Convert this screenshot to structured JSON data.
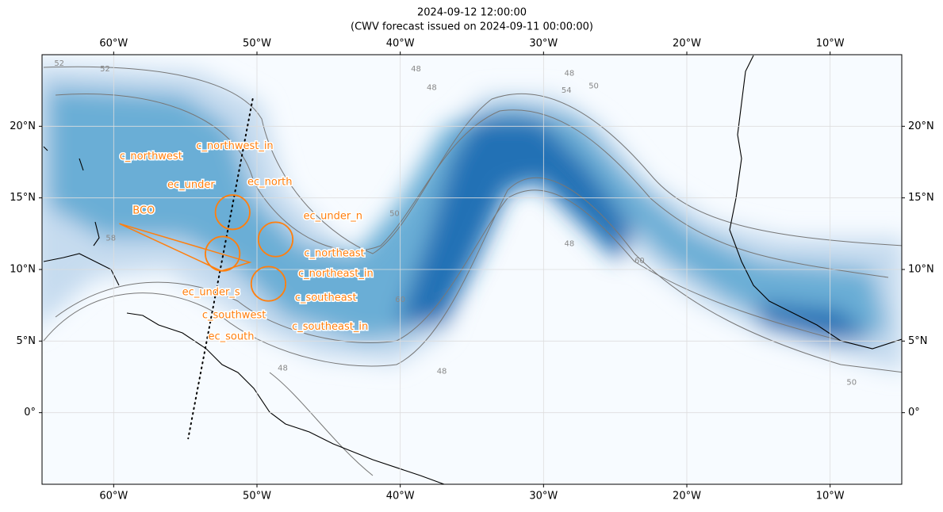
{
  "map": {
    "title": [
      "2024-09-12 12:00:00",
      "(CWV forecast issued on 2024-09-11 00:00:00)"
    ],
    "lonlim": [
      -65,
      -5
    ],
    "latlim": [
      -5,
      25
    ],
    "lonticks": [
      {
        "value": -60,
        "label": "60°W"
      },
      {
        "value": -50,
        "label": "50°W"
      },
      {
        "value": -40,
        "label": "40°W"
      },
      {
        "value": -30,
        "label": "30°W"
      },
      {
        "value": -20,
        "label": "20°W"
      },
      {
        "value": -10,
        "label": "10°W"
      }
    ],
    "latticks": [
      {
        "value": 0,
        "label": "0°"
      },
      {
        "value": 5,
        "label": "5°N"
      },
      {
        "value": 10,
        "label": "10°N"
      },
      {
        "value": 15,
        "label": "15°N"
      },
      {
        "value": 20,
        "label": "20°N"
      }
    ],
    "annotation_color": "#ff7f0e",
    "circles": [
      {
        "lon": -51.7,
        "lat": 14.0,
        "r": 1.2
      },
      {
        "lon": -48.7,
        "lat": 12.1,
        "r": 1.2
      },
      {
        "lon": -52.4,
        "lat": 11.1,
        "r": 1.2
      },
      {
        "lon": -49.2,
        "lat": 9.0,
        "r": 1.2
      }
    ],
    "track": [
      [
        -59.6,
        13.2
      ],
      [
        -50.5,
        10.5
      ],
      [
        -52.5,
        9.9
      ],
      [
        -59.6,
        13.2
      ]
    ],
    "dotted_track": [
      [
        -50.3,
        21.9
      ],
      [
        -54.8,
        -1.8
      ]
    ],
    "labels": [
      {
        "text": "c_northwest_in",
        "lon": -51.55,
        "lat": 18.6
      },
      {
        "text": "c_northwest",
        "lon": -57.4,
        "lat": 17.9
      },
      {
        "text": "ec_under",
        "lon": -54.6,
        "lat": 15.9
      },
      {
        "text": "ec_north",
        "lon": -49.1,
        "lat": 16.1
      },
      {
        "text": "BCO",
        "lon": -57.9,
        "lat": 14.1
      },
      {
        "text": "ec_under_n",
        "lon": -44.7,
        "lat": 13.7
      },
      {
        "text": "c_northeast",
        "lon": -44.6,
        "lat": 11.1
      },
      {
        "text": "c_northeast_in",
        "lon": -44.5,
        "lat": 9.7
      },
      {
        "text": "c_southeast",
        "lon": -45.2,
        "lat": 8.0
      },
      {
        "text": "ec_under_s",
        "lon": -53.2,
        "lat": 8.4
      },
      {
        "text": "c_southwest",
        "lon": -51.6,
        "lat": 6.8
      },
      {
        "text": "ec_south",
        "lon": -51.8,
        "lat": 5.3
      },
      {
        "text": "c_southeast_in",
        "lon": -44.9,
        "lat": 6.0
      }
    ],
    "contour_labels": [
      {
        "text": "52",
        "lon": -63.8,
        "lat": 24.4
      },
      {
        "text": "52",
        "lon": -60.6,
        "lat": 24.0
      },
      {
        "text": "48",
        "lon": -38.9,
        "lat": 24.0
      },
      {
        "text": "48",
        "lon": -37.8,
        "lat": 22.7
      },
      {
        "text": "48",
        "lon": -28.2,
        "lat": 23.7
      },
      {
        "text": "50",
        "lon": -26.5,
        "lat": 22.8
      },
      {
        "text": "54",
        "lon": -28.4,
        "lat": 22.5
      },
      {
        "text": "50",
        "lon": -40.4,
        "lat": 13.9
      },
      {
        "text": "48",
        "lon": -28.2,
        "lat": 11.8
      },
      {
        "text": "60",
        "lon": -23.3,
        "lat": 10.6
      },
      {
        "text": "50",
        "lon": -8.5,
        "lat": 2.1
      },
      {
        "text": "48",
        "lon": -37.1,
        "lat": 2.9
      },
      {
        "text": "48",
        "lon": -48.2,
        "lat": 3.1
      },
      {
        "text": "58",
        "lon": -60.2,
        "lat": 12.2
      },
      {
        "text": "60",
        "lon": -40.0,
        "lat": 7.9
      }
    ]
  }
}
